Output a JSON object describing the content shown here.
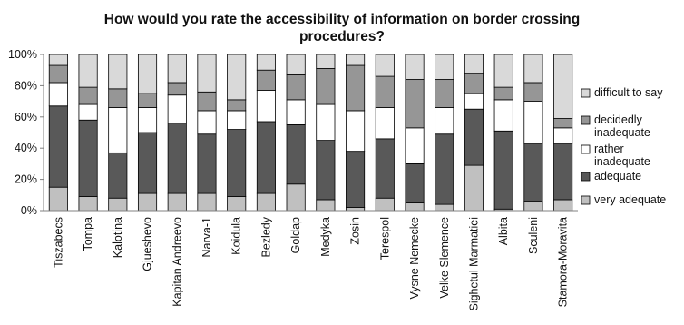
{
  "chart_data": {
    "type": "bar",
    "stacked": "percent",
    "title_lines": [
      "How would you rate the accessibility of information  on border crossing",
      "procedures?"
    ],
    "xlabel": "",
    "ylabel": "",
    "ylim": [
      0,
      100
    ],
    "y_ticks": [
      "0%",
      "20%",
      "40%",
      "60%",
      "80%",
      "100%"
    ],
    "grid": false,
    "legend_position": "right",
    "categories": [
      "Tiszabecs",
      "Tompa",
      "Kalotina",
      "Gjueshevo",
      "Kapitan Andreevo",
      "Narva-1",
      "Koidula",
      "Bezledy",
      "Goldap",
      "Medyka",
      "Zosin",
      "Terespol",
      "Vysne Nemecke",
      "Velke Slemence",
      "Sighetul Marmatiei",
      "Albita",
      "Sculeni",
      "Stamora-Moravita"
    ],
    "series": [
      {
        "name": "very adequate",
        "color": "#c0c0c0",
        "values": [
          15,
          9,
          8,
          11,
          11,
          11,
          9,
          11,
          17,
          7,
          2,
          8,
          5,
          4,
          29,
          1,
          6,
          7
        ]
      },
      {
        "name": "adequate",
        "color": "#595959",
        "values": [
          52,
          49,
          29,
          39,
          45,
          38,
          43,
          46,
          38,
          38,
          36,
          38,
          25,
          45,
          36,
          50,
          37,
          36
        ]
      },
      {
        "name": "rather inadequate",
        "color": "#ffffff",
        "values": [
          15,
          10,
          29,
          16,
          18,
          15,
          12,
          20,
          16,
          23,
          26,
          20,
          23,
          17,
          10,
          20,
          27,
          10
        ]
      },
      {
        "name": "decidedly inadequate",
        "color": "#969696",
        "values": [
          11,
          11,
          12,
          9,
          8,
          12,
          7,
          13,
          16,
          23,
          29,
          20,
          31,
          18,
          13,
          8,
          12,
          6
        ]
      },
      {
        "name": "difficult to say",
        "color": "#d9d9d9",
        "values": [
          7,
          21,
          22,
          25,
          18,
          24,
          29,
          10,
          13,
          9,
          7,
          14,
          16,
          16,
          12,
          21,
          18,
          41
        ]
      }
    ],
    "legend_lines": [
      {
        "series": "difficult to say",
        "lines": [
          "difficult to say"
        ]
      },
      {
        "series": "decidedly inadequate",
        "lines": [
          "decidedly",
          "inadequate"
        ]
      },
      {
        "series": "rather inadequate",
        "lines": [
          "rather",
          "inadequate"
        ]
      },
      {
        "series": "adequate",
        "lines": [
          "adequate"
        ]
      },
      {
        "series": "very adequate",
        "lines": [
          "very adequate"
        ]
      }
    ]
  }
}
